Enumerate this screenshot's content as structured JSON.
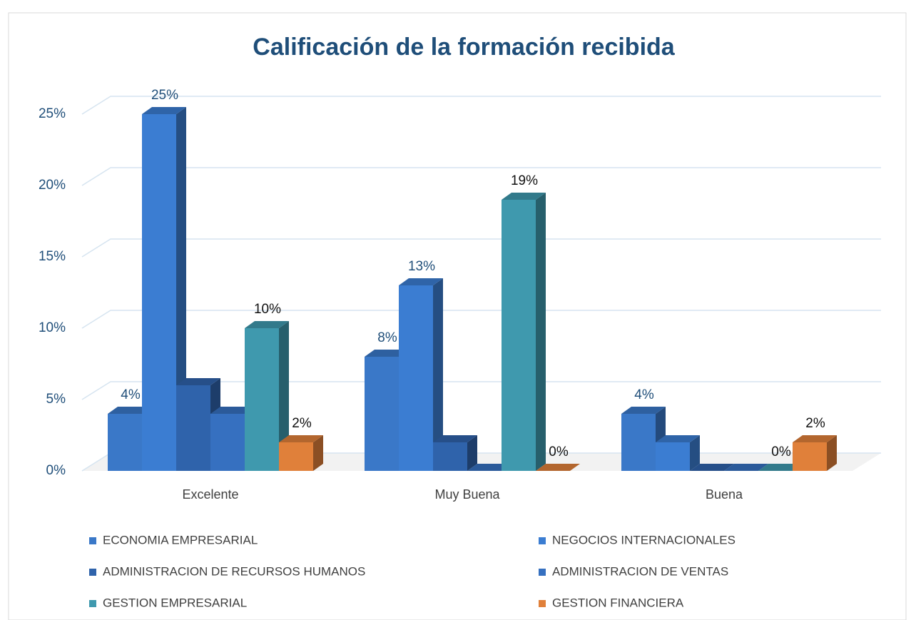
{
  "chart_data": {
    "type": "bar3d",
    "title": "Calificación de la formación recibida",
    "categories": [
      "Excelente",
      "Muy Buena",
      "Buena"
    ],
    "series": [
      {
        "name": "ECONOMIA EMPRESARIAL",
        "color": "#3a78c8",
        "values": [
          4,
          8,
          4
        ],
        "value_labels": [
          "4%",
          "8%",
          "4%"
        ]
      },
      {
        "name": "NEGOCIOS INTERNACIONALES",
        "color": "#3b7dd2",
        "values": [
          25,
          13,
          2
        ],
        "value_labels": [
          "25%",
          "13%",
          null
        ]
      },
      {
        "name": "ADMINISTRACION DE RECURSOS HUMANOS",
        "color": "#2f63ab",
        "values": [
          6,
          2,
          0
        ],
        "value_labels": [
          null,
          null,
          null
        ]
      },
      {
        "name": "ADMINISTRACION DE VENTAS",
        "color": "#3670c0",
        "values": [
          4,
          0,
          0
        ],
        "value_labels": [
          null,
          null,
          null
        ]
      },
      {
        "name": "GESTION EMPRESARIAL",
        "color": "#3f99ae",
        "values": [
          10,
          19,
          0
        ],
        "value_labels": [
          "10%",
          "19%",
          "0%"
        ]
      },
      {
        "name": "GESTION FINANCIERA",
        "color": "#e0803a",
        "values": [
          2,
          0,
          2
        ],
        "value_labels": [
          "2%",
          "0%",
          "2%"
        ]
      }
    ],
    "ylim": [
      0,
      25
    ],
    "yticks": [
      {
        "value": 0,
        "label": "0%"
      },
      {
        "value": 5,
        "label": "5%"
      },
      {
        "value": 10,
        "label": "10%"
      },
      {
        "value": 15,
        "label": "15%"
      },
      {
        "value": 20,
        "label": "20%"
      },
      {
        "value": 25,
        "label": "25%"
      }
    ],
    "grid": true,
    "legend": "bottom"
  }
}
